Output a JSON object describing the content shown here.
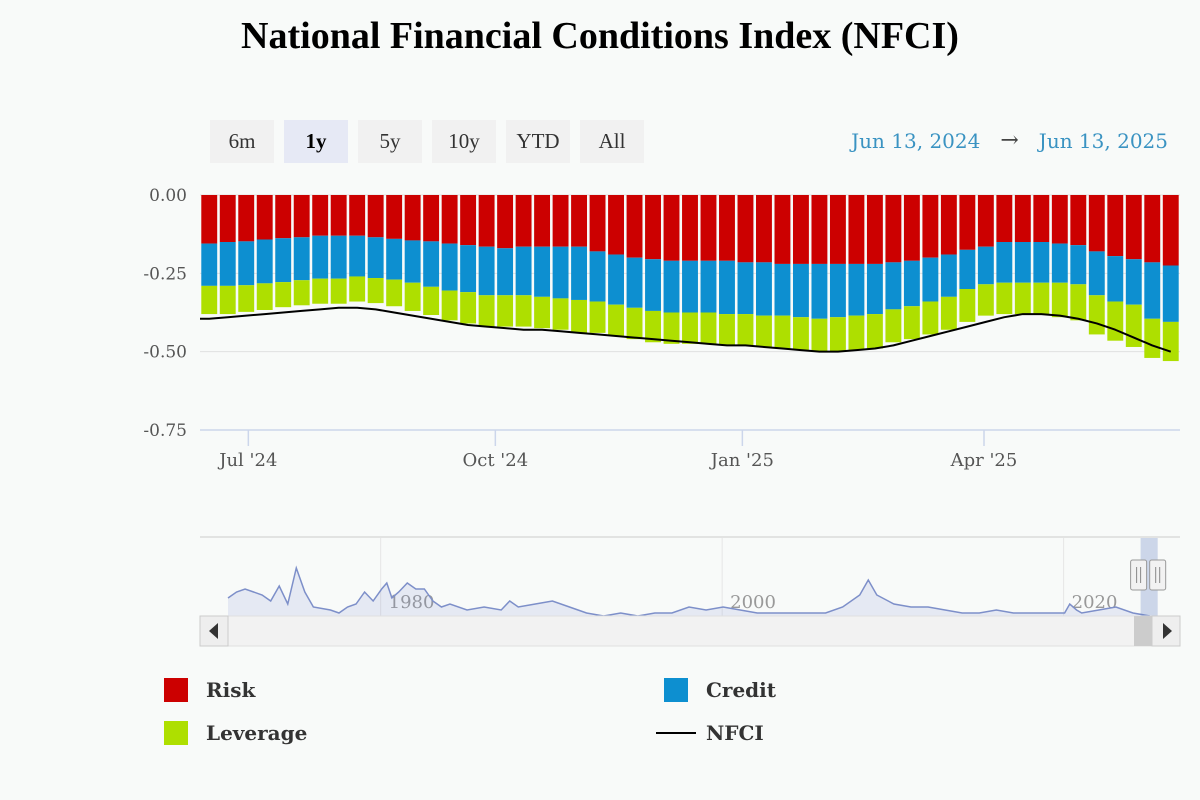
{
  "title": "National Financial Conditions Index (NFCI)",
  "range_selector": {
    "buttons": [
      "6m",
      "1y",
      "5y",
      "10y",
      "YTD",
      "All"
    ],
    "active": "1y"
  },
  "date_range": {
    "from": "Jun 13, 2024",
    "arrow": "→",
    "to": "Jun 13, 2025"
  },
  "colors": {
    "risk": "#cc0000",
    "credit": "#0d8fd0",
    "leverage": "#aedf00",
    "nfci": "#000000"
  },
  "chart_data": {
    "type": "bar",
    "stacked": true,
    "y_ticks": [
      "0.00",
      "-0.25",
      "-0.50",
      "-0.75"
    ],
    "ylim": [
      -0.75,
      0.0
    ],
    "x_ticks": [
      "Jul '24",
      "Oct '24",
      "Jan '25",
      "Apr '25"
    ],
    "x_tick_dates": [
      "2024-07-01",
      "2024-10-01",
      "2025-01-01",
      "2025-04-01"
    ],
    "x_range": [
      "2024-06-13",
      "2025-06-13"
    ],
    "grid": true,
    "legend_position": "bottom",
    "dates": [
      "2024-06-14",
      "2024-06-21",
      "2024-06-28",
      "2024-07-05",
      "2024-07-12",
      "2024-07-19",
      "2024-07-26",
      "2024-08-02",
      "2024-08-09",
      "2024-08-16",
      "2024-08-23",
      "2024-08-30",
      "2024-09-06",
      "2024-09-13",
      "2024-09-20",
      "2024-09-27",
      "2024-10-04",
      "2024-10-11",
      "2024-10-18",
      "2024-10-25",
      "2024-11-01",
      "2024-11-08",
      "2024-11-15",
      "2024-11-22",
      "2024-11-29",
      "2024-12-06",
      "2024-12-13",
      "2024-12-20",
      "2024-12-27",
      "2025-01-03",
      "2025-01-10",
      "2025-01-17",
      "2025-01-24",
      "2025-01-31",
      "2025-02-07",
      "2025-02-14",
      "2025-02-21",
      "2025-02-28",
      "2025-03-07",
      "2025-03-14",
      "2025-03-21",
      "2025-03-28",
      "2025-04-04",
      "2025-04-11",
      "2025-04-18",
      "2025-04-25",
      "2025-05-02",
      "2025-05-09",
      "2025-05-16",
      "2025-05-23",
      "2025-05-30",
      "2025-06-06",
      "2025-06-13"
    ],
    "series": [
      {
        "name": "Risk",
        "values": [
          -0.155,
          -0.15,
          -0.148,
          -0.142,
          -0.138,
          -0.135,
          -0.13,
          -0.13,
          -0.13,
          -0.135,
          -0.14,
          -0.145,
          -0.148,
          -0.155,
          -0.16,
          -0.165,
          -0.17,
          -0.165,
          -0.165,
          -0.165,
          -0.165,
          -0.18,
          -0.19,
          -0.2,
          -0.205,
          -0.21,
          -0.21,
          -0.21,
          -0.21,
          -0.215,
          -0.215,
          -0.22,
          -0.22,
          -0.22,
          -0.22,
          -0.22,
          -0.22,
          -0.215,
          -0.21,
          -0.2,
          -0.19,
          -0.175,
          -0.165,
          -0.15,
          -0.15,
          -0.15,
          -0.155,
          -0.16,
          -0.18,
          -0.195,
          -0.205,
          -0.215,
          -0.225
        ]
      },
      {
        "name": "Credit",
        "values": [
          -0.135,
          -0.14,
          -0.14,
          -0.14,
          -0.14,
          -0.137,
          -0.137,
          -0.137,
          -0.13,
          -0.13,
          -0.13,
          -0.135,
          -0.145,
          -0.15,
          -0.15,
          -0.155,
          -0.15,
          -0.155,
          -0.16,
          -0.165,
          -0.17,
          -0.16,
          -0.16,
          -0.16,
          -0.165,
          -0.165,
          -0.165,
          -0.165,
          -0.17,
          -0.165,
          -0.17,
          -0.165,
          -0.17,
          -0.175,
          -0.17,
          -0.165,
          -0.16,
          -0.15,
          -0.145,
          -0.14,
          -0.135,
          -0.125,
          -0.12,
          -0.13,
          -0.13,
          -0.13,
          -0.125,
          -0.125,
          -0.14,
          -0.145,
          -0.145,
          -0.18,
          -0.18
        ]
      },
      {
        "name": "Leverage",
        "values": [
          -0.09,
          -0.09,
          -0.085,
          -0.085,
          -0.08,
          -0.08,
          -0.08,
          -0.08,
          -0.08,
          -0.08,
          -0.085,
          -0.09,
          -0.09,
          -0.095,
          -0.1,
          -0.1,
          -0.1,
          -0.1,
          -0.1,
          -0.1,
          -0.105,
          -0.1,
          -0.1,
          -0.1,
          -0.1,
          -0.1,
          -0.1,
          -0.1,
          -0.1,
          -0.1,
          -0.1,
          -0.105,
          -0.105,
          -0.105,
          -0.11,
          -0.11,
          -0.11,
          -0.105,
          -0.105,
          -0.105,
          -0.105,
          -0.105,
          -0.1,
          -0.1,
          -0.1,
          -0.1,
          -0.11,
          -0.115,
          -0.125,
          -0.125,
          -0.135,
          -0.125,
          -0.125
        ]
      },
      {
        "name": "NFCI",
        "type": "line",
        "values": [
          -0.395,
          -0.39,
          -0.385,
          -0.38,
          -0.375,
          -0.37,
          -0.365,
          -0.36,
          -0.36,
          -0.365,
          -0.375,
          -0.385,
          -0.395,
          -0.405,
          -0.415,
          -0.42,
          -0.425,
          -0.43,
          -0.43,
          -0.435,
          -0.44,
          -0.445,
          -0.45,
          -0.455,
          -0.46,
          -0.465,
          -0.47,
          -0.475,
          -0.48,
          -0.48,
          -0.485,
          -0.49,
          -0.495,
          -0.5,
          -0.5,
          -0.495,
          -0.49,
          -0.48,
          -0.465,
          -0.45,
          -0.435,
          -0.42,
          -0.405,
          -0.39,
          -0.38,
          -0.38,
          -0.385,
          -0.395,
          -0.41,
          -0.43,
          -0.455,
          -0.48,
          -0.5
        ]
      }
    ]
  },
  "navigator": {
    "labels": [
      "1980",
      "2000",
      "2020"
    ],
    "label_years": [
      1980,
      2000,
      2020
    ],
    "year_range": [
      1971,
      2025
    ],
    "selected_years": [
      2024.45,
      2025.45
    ],
    "series": [
      [
        1971,
        -0.2
      ],
      [
        1971.5,
        -0.1
      ],
      [
        1972,
        -0.05
      ],
      [
        1972.5,
        -0.1
      ],
      [
        1973,
        -0.15
      ],
      [
        1973.5,
        -0.25
      ],
      [
        1974,
        0.0
      ],
      [
        1974.5,
        -0.3
      ],
      [
        1975,
        0.3
      ],
      [
        1975.5,
        -0.1
      ],
      [
        1976,
        -0.35
      ],
      [
        1977,
        -0.4
      ],
      [
        1977.5,
        -0.45
      ],
      [
        1978,
        -0.35
      ],
      [
        1978.5,
        -0.3
      ],
      [
        1979,
        -0.1
      ],
      [
        1979.5,
        -0.25
      ],
      [
        1980,
        -0.05
      ],
      [
        1980.3,
        0.05
      ],
      [
        1980.6,
        -0.2
      ],
      [
        1981,
        -0.1
      ],
      [
        1981.5,
        0.05
      ],
      [
        1982,
        -0.05
      ],
      [
        1982.5,
        -0.05
      ],
      [
        1983,
        -0.25
      ],
      [
        1983.5,
        -0.35
      ],
      [
        1984,
        -0.3
      ],
      [
        1985,
        -0.4
      ],
      [
        1986,
        -0.35
      ],
      [
        1987,
        -0.4
      ],
      [
        1987.5,
        -0.25
      ],
      [
        1988,
        -0.35
      ],
      [
        1989,
        -0.3
      ],
      [
        1990,
        -0.25
      ],
      [
        1991,
        -0.35
      ],
      [
        1992,
        -0.45
      ],
      [
        1993,
        -0.5
      ],
      [
        1994,
        -0.45
      ],
      [
        1995,
        -0.5
      ],
      [
        1996,
        -0.45
      ],
      [
        1997,
        -0.45
      ],
      [
        1998,
        -0.35
      ],
      [
        1999,
        -0.4
      ],
      [
        2000,
        -0.35
      ],
      [
        2001,
        -0.4
      ],
      [
        2002,
        -0.45
      ],
      [
        2003,
        -0.45
      ],
      [
        2004,
        -0.45
      ],
      [
        2005,
        -0.45
      ],
      [
        2006,
        -0.45
      ],
      [
        2007,
        -0.35
      ],
      [
        2008,
        -0.15
      ],
      [
        2008.5,
        0.1
      ],
      [
        2009,
        -0.15
      ],
      [
        2010,
        -0.3
      ],
      [
        2011,
        -0.35
      ],
      [
        2012,
        -0.35
      ],
      [
        2013,
        -0.4
      ],
      [
        2014,
        -0.45
      ],
      [
        2015,
        -0.45
      ],
      [
        2016,
        -0.4
      ],
      [
        2017,
        -0.45
      ],
      [
        2018,
        -0.45
      ],
      [
        2019,
        -0.45
      ],
      [
        2020,
        -0.45
      ],
      [
        2020.3,
        -0.3
      ],
      [
        2020.7,
        -0.4
      ],
      [
        2021,
        -0.45
      ],
      [
        2022,
        -0.4
      ],
      [
        2023,
        -0.35
      ],
      [
        2024,
        -0.45
      ],
      [
        2025,
        -0.5
      ]
    ]
  },
  "legend": {
    "risk": "Risk",
    "credit": "Credit",
    "leverage": "Leverage",
    "nfci": "NFCI"
  }
}
